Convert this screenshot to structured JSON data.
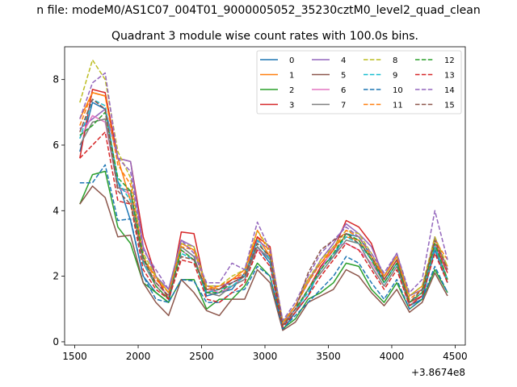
{
  "figure_title": "n file: modeM0/AS1C07_004T01_9000005052_35230cztM0_level2_quad_clean",
  "chart_data": {
    "type": "line",
    "title": "Quadrant 3 module wise count rates with 100.0s bins.",
    "xlabel": "",
    "ylabel": "",
    "x_offset_label": "+3.8674e8",
    "xlim": [
      1420,
      4580
    ],
    "ylim": [
      -0.1,
      9.0
    ],
    "xticks": [
      1500,
      2000,
      2500,
      3000,
      3500,
      4000,
      4500
    ],
    "yticks": [
      0,
      2,
      4,
      6,
      8
    ],
    "legend_position": "top-right",
    "x": [
      1540,
      1640,
      1740,
      1840,
      1940,
      2040,
      2140,
      2240,
      2340,
      2440,
      2540,
      2640,
      2740,
      2840,
      2940,
      3040,
      3140,
      3240,
      3340,
      3440,
      3540,
      3640,
      3740,
      3840,
      3940,
      4040,
      4140,
      4240,
      4340,
      4440
    ],
    "series": [
      {
        "name": "0",
        "color": "#1f77b4",
        "dash": false,
        "values": [
          5.8,
          7.3,
          7.1,
          4.9,
          3.7,
          2.0,
          1.5,
          1.2,
          2.9,
          2.6,
          1.4,
          1.5,
          1.6,
          2.1,
          2.9,
          2.4,
          0.35,
          0.9,
          1.4,
          2.3,
          2.6,
          3.3,
          3.2,
          2.6,
          1.8,
          2.4,
          1.1,
          1.3,
          2.8,
          1.8
        ]
      },
      {
        "name": "1",
        "color": "#ff7f0e",
        "dash": false,
        "values": [
          6.8,
          7.6,
          7.5,
          5.6,
          4.3,
          2.5,
          2.0,
          1.5,
          3.0,
          2.8,
          1.7,
          1.6,
          1.9,
          2.2,
          3.2,
          2.6,
          0.55,
          1.1,
          1.9,
          2.4,
          2.9,
          3.2,
          3.1,
          2.5,
          2.0,
          2.6,
          1.4,
          1.7,
          3.0,
          2.3
        ]
      },
      {
        "name": "2",
        "color": "#2ca02c",
        "dash": false,
        "values": [
          4.2,
          5.1,
          5.2,
          3.5,
          3.0,
          1.8,
          1.5,
          1.2,
          1.9,
          1.9,
          1.0,
          1.3,
          1.3,
          1.7,
          2.4,
          2.0,
          0.4,
          0.7,
          1.3,
          1.5,
          1.8,
          2.4,
          2.3,
          1.6,
          1.2,
          1.8,
          1.0,
          1.3,
          2.2,
          1.5
        ]
      },
      {
        "name": "3",
        "color": "#d62728",
        "dash": false,
        "values": [
          5.6,
          7.7,
          7.6,
          5.6,
          5.5,
          3.2,
          2.0,
          1.3,
          3.35,
          3.3,
          1.5,
          1.6,
          1.9,
          2.0,
          3.2,
          2.9,
          0.5,
          1.0,
          1.6,
          2.3,
          2.8,
          3.7,
          3.5,
          3.0,
          1.9,
          2.5,
          1.2,
          1.4,
          3.0,
          2.1
        ]
      },
      {
        "name": "4",
        "color": "#9467bd",
        "dash": false,
        "values": [
          6.5,
          6.8,
          7.1,
          5.6,
          5.5,
          2.9,
          2.0,
          1.6,
          3.1,
          2.9,
          1.7,
          1.7,
          1.8,
          2.0,
          3.1,
          2.8,
          0.6,
          1.1,
          1.8,
          2.5,
          3.0,
          3.6,
          3.3,
          2.9,
          2.0,
          2.7,
          1.4,
          1.6,
          3.2,
          2.2
        ]
      },
      {
        "name": "5",
        "color": "#8c564b",
        "dash": false,
        "values": [
          4.2,
          4.75,
          4.4,
          3.2,
          3.25,
          1.8,
          1.2,
          0.8,
          1.9,
          1.5,
          0.95,
          0.8,
          1.3,
          1.3,
          2.2,
          1.8,
          0.35,
          0.6,
          1.2,
          1.4,
          1.6,
          2.2,
          2.0,
          1.5,
          1.1,
          1.6,
          0.9,
          1.2,
          2.1,
          1.4
        ]
      },
      {
        "name": "6",
        "color": "#e377c2",
        "dash": false,
        "values": [
          6.2,
          6.9,
          6.7,
          4.7,
          4.5,
          2.5,
          1.8,
          1.4,
          2.8,
          2.5,
          1.6,
          1.5,
          1.7,
          2.0,
          2.8,
          2.6,
          0.55,
          1.0,
          1.6,
          2.2,
          2.9,
          3.0,
          2.8,
          2.4,
          1.8,
          2.4,
          1.2,
          1.5,
          3.0,
          1.9
        ]
      },
      {
        "name": "7",
        "color": "#7f7f7f",
        "dash": false,
        "values": [
          6.0,
          6.7,
          6.8,
          4.7,
          4.6,
          2.4,
          1.7,
          1.3,
          2.9,
          2.6,
          1.5,
          1.4,
          1.7,
          1.9,
          2.9,
          2.5,
          0.5,
          0.9,
          1.6,
          2.1,
          2.6,
          3.1,
          3.0,
          2.3,
          1.7,
          2.3,
          1.1,
          1.4,
          2.9,
          1.8
        ]
      },
      {
        "name": "8",
        "color": "#bcbd22",
        "dash": true,
        "values": [
          7.3,
          8.6,
          8.0,
          5.8,
          5.0,
          2.7,
          2.0,
          1.5,
          3.0,
          2.9,
          1.7,
          1.7,
          2.0,
          2.2,
          3.4,
          2.8,
          0.6,
          1.1,
          1.9,
          2.5,
          2.9,
          3.4,
          3.3,
          2.7,
          2.0,
          2.6,
          1.4,
          1.7,
          3.2,
          2.3
        ]
      },
      {
        "name": "9",
        "color": "#17becf",
        "dash": true,
        "values": [
          6.2,
          7.4,
          7.2,
          4.9,
          4.3,
          2.4,
          1.8,
          1.4,
          2.7,
          2.5,
          1.5,
          1.6,
          1.7,
          2.0,
          3.1,
          2.5,
          0.5,
          1.0,
          1.5,
          2.2,
          2.7,
          3.2,
          3.0,
          2.5,
          1.8,
          2.4,
          1.2,
          1.5,
          2.9,
          1.9
        ]
      },
      {
        "name": "10",
        "color": "#1f77b4",
        "dash": true,
        "values": [
          4.85,
          4.85,
          5.4,
          3.7,
          3.75,
          2.0,
          1.3,
          1.2,
          1.9,
          1.85,
          1.2,
          1.2,
          1.5,
          1.6,
          2.3,
          2.0,
          0.4,
          0.8,
          1.2,
          1.6,
          2.0,
          2.6,
          2.4,
          1.8,
          1.3,
          1.9,
          1.0,
          1.3,
          2.3,
          1.5
        ]
      },
      {
        "name": "11",
        "color": "#ff7f0e",
        "dash": true,
        "values": [
          6.6,
          7.6,
          7.5,
          5.4,
          4.8,
          2.6,
          1.9,
          1.5,
          2.9,
          2.8,
          1.6,
          1.7,
          1.9,
          2.1,
          3.4,
          2.7,
          0.55,
          1.1,
          1.8,
          2.4,
          2.8,
          3.4,
          3.2,
          2.6,
          2.0,
          2.6,
          1.3,
          1.6,
          3.1,
          2.5
        ]
      },
      {
        "name": "12",
        "color": "#2ca02c",
        "dash": true,
        "values": [
          6.3,
          6.6,
          7.0,
          5.0,
          4.6,
          2.6,
          1.7,
          1.3,
          2.8,
          2.5,
          1.5,
          1.5,
          1.8,
          2.0,
          3.0,
          2.6,
          0.5,
          1.0,
          1.6,
          2.2,
          2.7,
          3.3,
          3.1,
          2.5,
          1.8,
          2.4,
          1.2,
          1.5,
          3.0,
          1.9
        ]
      },
      {
        "name": "13",
        "color": "#d62728",
        "dash": true,
        "values": [
          5.6,
          6.0,
          6.4,
          4.3,
          4.2,
          2.2,
          1.6,
          1.3,
          2.5,
          2.4,
          1.3,
          1.2,
          1.5,
          1.8,
          2.8,
          2.3,
          0.45,
          0.9,
          1.4,
          2.0,
          2.5,
          3.0,
          2.8,
          2.2,
          1.6,
          2.2,
          1.1,
          1.4,
          2.7,
          1.8
        ]
      },
      {
        "name": "14",
        "color": "#9467bd",
        "dash": true,
        "values": [
          6.8,
          7.9,
          8.2,
          5.6,
          5.2,
          2.8,
          2.2,
          1.6,
          3.1,
          2.7,
          1.8,
          1.8,
          2.4,
          2.2,
          3.65,
          2.8,
          0.65,
          1.2,
          2.0,
          2.7,
          3.1,
          3.5,
          3.2,
          2.7,
          2.1,
          2.7,
          1.5,
          1.9,
          4.0,
          2.5
        ]
      },
      {
        "name": "15",
        "color": "#8c564b",
        "dash": true,
        "values": [
          6.4,
          7.4,
          7.1,
          4.6,
          4.2,
          2.5,
          1.8,
          1.4,
          2.6,
          2.5,
          1.6,
          1.6,
          1.8,
          2.0,
          3.0,
          2.6,
          0.5,
          1.0,
          2.1,
          2.8,
          3.1,
          3.3,
          3.0,
          2.6,
          1.9,
          2.5,
          1.2,
          1.6,
          3.1,
          2.2
        ]
      }
    ]
  }
}
